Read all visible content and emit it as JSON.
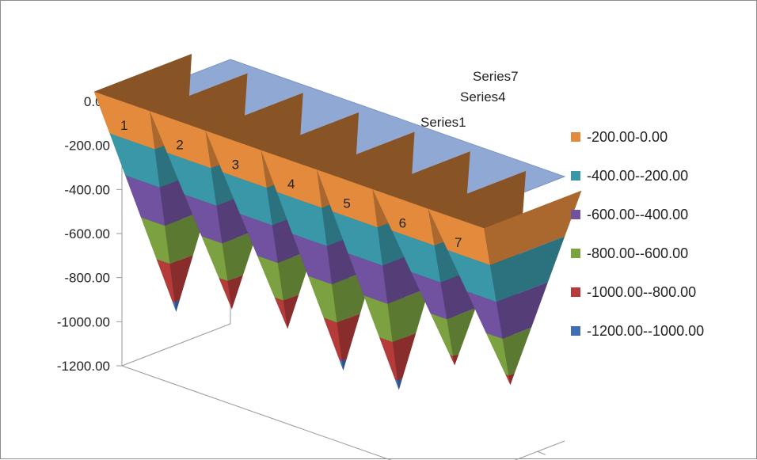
{
  "chart_data": {
    "type": "surface",
    "categories": [
      "1",
      "2",
      "3",
      "4",
      "5",
      "6",
      "7"
    ],
    "series_names": [
      "Series1",
      "Series4",
      "Series7"
    ],
    "z_ticks": [
      "0.00",
      "-200.00",
      "-400.00",
      "-600.00",
      "-800.00",
      "-1000.00",
      "-1200.00"
    ],
    "zlim": [
      -1200,
      0
    ],
    "values": [
      [
        -1050,
        0,
        0,
        0,
        0,
        0,
        0
      ],
      [
        0,
        -950,
        0,
        0,
        0,
        0,
        0
      ],
      [
        0,
        0,
        -950,
        0,
        0,
        0,
        0
      ],
      [
        0,
        0,
        0,
        -1050,
        0,
        0,
        0
      ],
      [
        0,
        0,
        0,
        0,
        -1050,
        0,
        0
      ],
      [
        0,
        0,
        0,
        0,
        0,
        -850,
        0
      ],
      [
        0,
        0,
        0,
        0,
        0,
        0,
        -850
      ]
    ],
    "legend": {
      "position": "right",
      "entries": [
        {
          "label": "-200.00-0.00",
          "color": "#E38A3D"
        },
        {
          "label": "-400.00--200.00",
          "color": "#3A97A8"
        },
        {
          "label": "-600.00--400.00",
          "color": "#7152A0"
        },
        {
          "label": "-800.00--600.00",
          "color": "#7BA141"
        },
        {
          "label": "-1000.00--800.00",
          "color": "#B53A3A"
        },
        {
          "label": "-1200.00--1000.00",
          "color": "#3F6FB5"
        }
      ]
    },
    "top_color": "#8FA8D4",
    "grid": false
  }
}
